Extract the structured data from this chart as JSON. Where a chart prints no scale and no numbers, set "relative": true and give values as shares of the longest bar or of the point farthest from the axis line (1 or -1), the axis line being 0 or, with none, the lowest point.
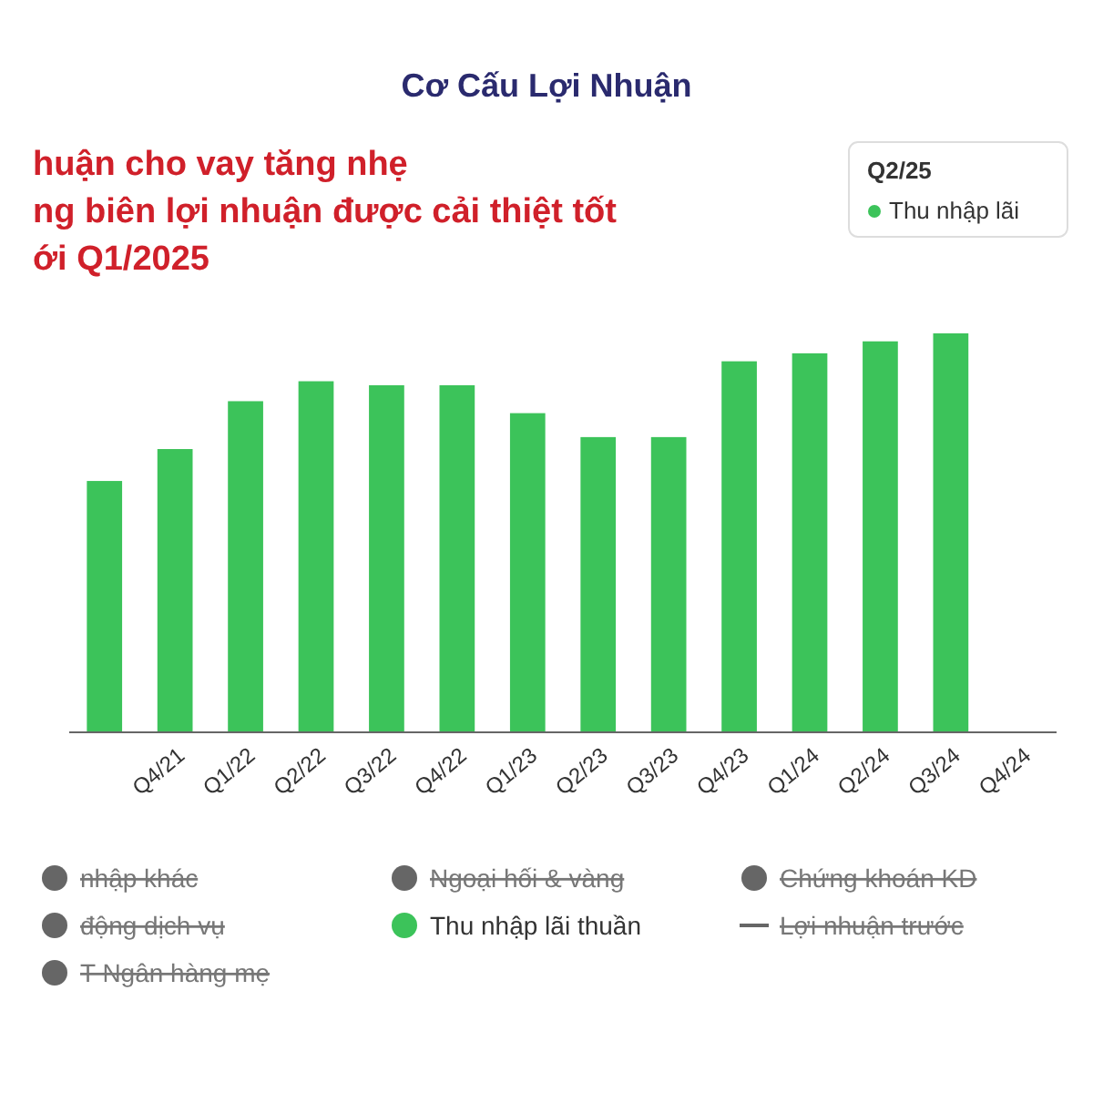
{
  "chart_data": {
    "type": "bar",
    "title": "Cơ Cấu Lợi Nhuận",
    "relative": true,
    "legend": "bottom",
    "annotations": [
      "huận cho vay tăng nhẹ",
      "ng biên lợi nhuận được cải thiệt tốt",
      "ới Q1/2025",
      "Q2/25",
      "Thu nhập lãi"
    ],
    "categories": [
      null,
      "Q4/21",
      "Q1/22",
      "Q2/22",
      "Q3/22",
      "Q4/22",
      "Q1/23",
      "Q2/23",
      "Q3/23",
      "Q4/23",
      "Q1/24",
      "Q2/24",
      "Q3/24",
      "Q4/24"
    ],
    "series": [
      {
        "name": "nhập khác",
        "color": "#666666",
        "values": [
          null,
          null,
          null,
          null,
          null,
          null,
          null,
          null,
          null,
          null,
          null,
          null,
          null,
          null
        ]
      },
      {
        "name": "Ngoại hối & vàng",
        "color": "#666666",
        "values": [
          null,
          null,
          null,
          null,
          null,
          null,
          null,
          null,
          null,
          null,
          null,
          null,
          null,
          null
        ]
      },
      {
        "name": "Chứng khoán KD",
        "color": "#666666",
        "values": [
          null,
          null,
          null,
          null,
          null,
          null,
          null,
          null,
          null,
          null,
          null,
          null,
          null,
          null
        ]
      },
      {
        "name": "động dịch vụ",
        "color": "#666666",
        "values": [
          null,
          null,
          null,
          null,
          null,
          null,
          null,
          null,
          null,
          null,
          null,
          null,
          null,
          null
        ]
      },
      {
        "name": "Thu nhập lãi thuần",
        "color": "#3cc35a",
        "values": [
          0.63,
          0.71,
          0.83,
          0.88,
          0.87,
          0.87,
          0.8,
          0.74,
          0.74,
          0.93,
          0.95,
          0.98,
          1,
          null
        ]
      },
      {
        "name": "Lợi nhuận trước",
        "type": "line",
        "color": "#666666",
        "values": [
          null,
          null,
          null,
          null,
          null,
          null,
          null,
          null,
          null,
          null,
          null,
          null,
          null,
          null
        ]
      },
      {
        "name": "T Ngân hàng mẹ",
        "color": "#666666",
        "values": [
          null,
          null,
          null,
          null,
          null,
          null,
          null,
          null,
          null,
          null,
          null,
          null,
          null,
          null
        ]
      }
    ]
  }
}
